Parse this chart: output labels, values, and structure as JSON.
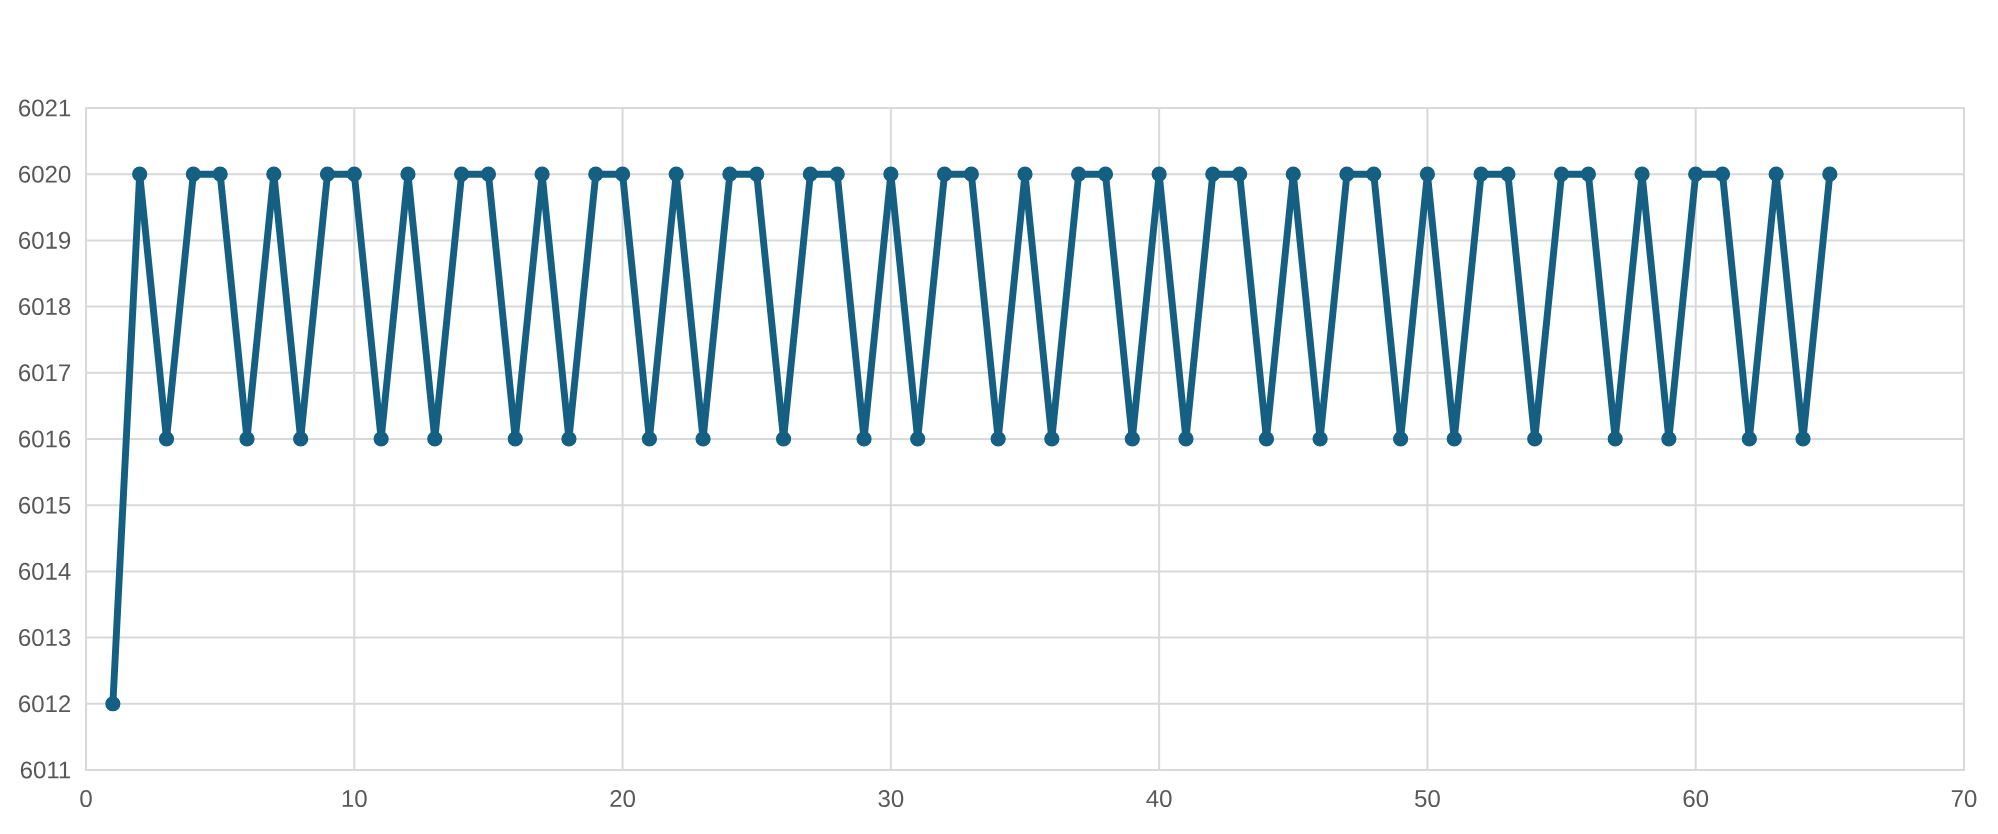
{
  "chart_data": {
    "type": "line",
    "x": [
      1,
      2,
      3,
      4,
      5,
      6,
      7,
      8,
      9,
      10,
      11,
      12,
      13,
      14,
      15,
      16,
      17,
      18,
      19,
      20,
      21,
      22,
      23,
      24,
      25,
      26,
      27,
      28,
      29,
      30,
      31,
      32,
      33,
      34,
      35,
      36,
      37,
      38,
      39,
      40,
      41,
      42,
      43,
      44,
      45,
      46,
      47,
      48,
      49,
      50,
      51,
      52,
      53,
      54,
      55,
      56,
      57,
      58,
      59,
      60,
      61,
      62,
      63,
      64,
      65
    ],
    "series": [
      {
        "color": "#156082",
        "values": [
          6012,
          6020,
          6016,
          6020,
          6020,
          6016,
          6020,
          6016,
          6020,
          6020,
          6016,
          6020,
          6016,
          6020,
          6020,
          6016,
          6020,
          6016,
          6020,
          6020,
          6016,
          6020,
          6016,
          6020,
          6020,
          6016,
          6020,
          6020,
          6016,
          6020,
          6016,
          6020,
          6020,
          6016,
          6020,
          6016,
          6020,
          6020,
          6016,
          6020,
          6016,
          6020,
          6020,
          6016,
          6020,
          6016,
          6020,
          6020,
          6016,
          6020,
          6016,
          6020,
          6020,
          6016,
          6020,
          6020,
          6016,
          6020,
          6016,
          6020,
          6020,
          6016,
          6020,
          6016,
          6020
        ]
      }
    ],
    "xlim": [
      0,
      70
    ],
    "xticks": [
      0,
      10,
      20,
      30,
      40,
      50,
      60,
      70
    ],
    "ylim": [
      6011,
      6021
    ],
    "yticks": [
      6011,
      6012,
      6013,
      6014,
      6015,
      6016,
      6017,
      6018,
      6019,
      6020,
      6021
    ],
    "grid": true,
    "marker": "circle",
    "line_style": "solid"
  }
}
